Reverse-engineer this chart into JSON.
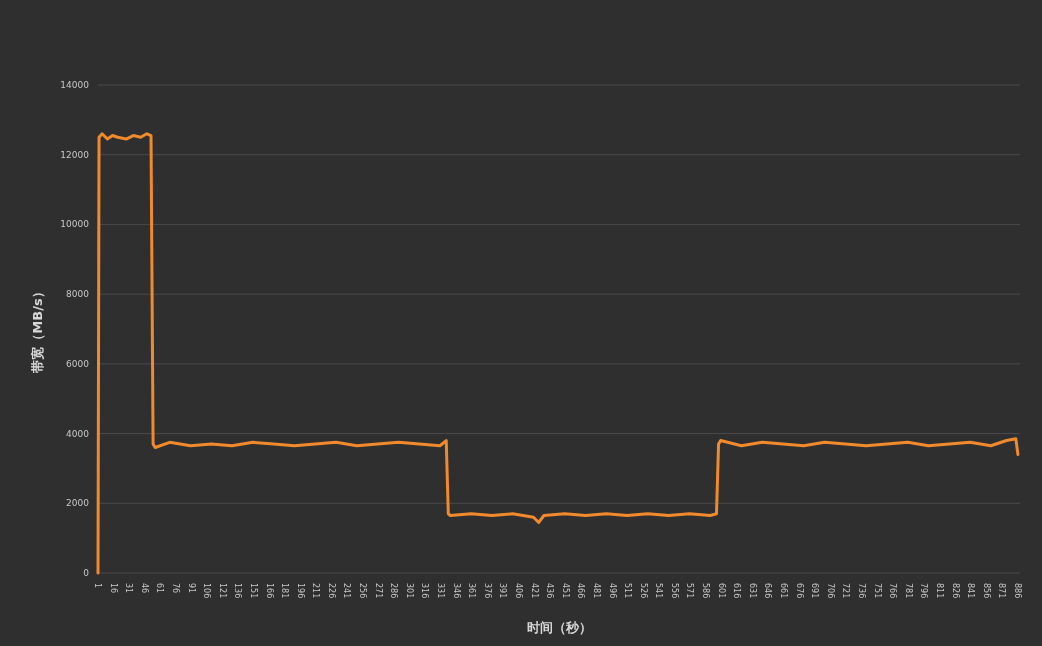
{
  "chart_data": {
    "type": "line",
    "xlabel": "时间（秒）",
    "ylabel": "带宽（MB/s）",
    "color": "#f08a2c",
    "grid": "y",
    "marker": "none",
    "line_style": "solid",
    "xlim": [
      1,
      888
    ],
    "ylim": [
      0,
      14000
    ],
    "yticks": [
      0,
      2000,
      4000,
      6000,
      8000,
      10000,
      12000,
      14000
    ],
    "xticks": [
      1,
      16,
      31,
      46,
      61,
      76,
      91,
      106,
      121,
      136,
      151,
      166,
      181,
      196,
      211,
      226,
      241,
      256,
      271,
      286,
      301,
      316,
      331,
      346,
      361,
      376,
      391,
      406,
      421,
      436,
      451,
      466,
      481,
      496,
      511,
      526,
      541,
      556,
      571,
      586,
      601,
      616,
      631,
      646,
      661,
      676,
      691,
      706,
      721,
      736,
      751,
      766,
      781,
      796,
      811,
      826,
      841,
      856,
      871,
      886
    ],
    "x": [
      1,
      2,
      5,
      10,
      15,
      20,
      28,
      35,
      42,
      48,
      52,
      54,
      56,
      70,
      90,
      110,
      130,
      150,
      170,
      190,
      210,
      230,
      250,
      270,
      290,
      310,
      330,
      336,
      338,
      340,
      360,
      380,
      400,
      420,
      425,
      430,
      450,
      470,
      490,
      510,
      530,
      550,
      570,
      590,
      596,
      598,
      600,
      620,
      640,
      660,
      680,
      700,
      720,
      740,
      760,
      780,
      800,
      820,
      840,
      860,
      875,
      884,
      886
    ],
    "values": [
      0,
      12500,
      12600,
      12450,
      12550,
      12500,
      12450,
      12550,
      12500,
      12600,
      12550,
      3700,
      3600,
      3750,
      3650,
      3700,
      3650,
      3750,
      3700,
      3650,
      3700,
      3750,
      3650,
      3700,
      3750,
      3700,
      3650,
      3800,
      1700,
      1650,
      1700,
      1650,
      1700,
      1600,
      1450,
      1650,
      1700,
      1650,
      1700,
      1650,
      1700,
      1650,
      1700,
      1650,
      1700,
      3700,
      3800,
      3650,
      3750,
      3700,
      3650,
      3750,
      3700,
      3650,
      3700,
      3750,
      3650,
      3700,
      3750,
      3650,
      3800,
      3850,
      3400
    ]
  }
}
